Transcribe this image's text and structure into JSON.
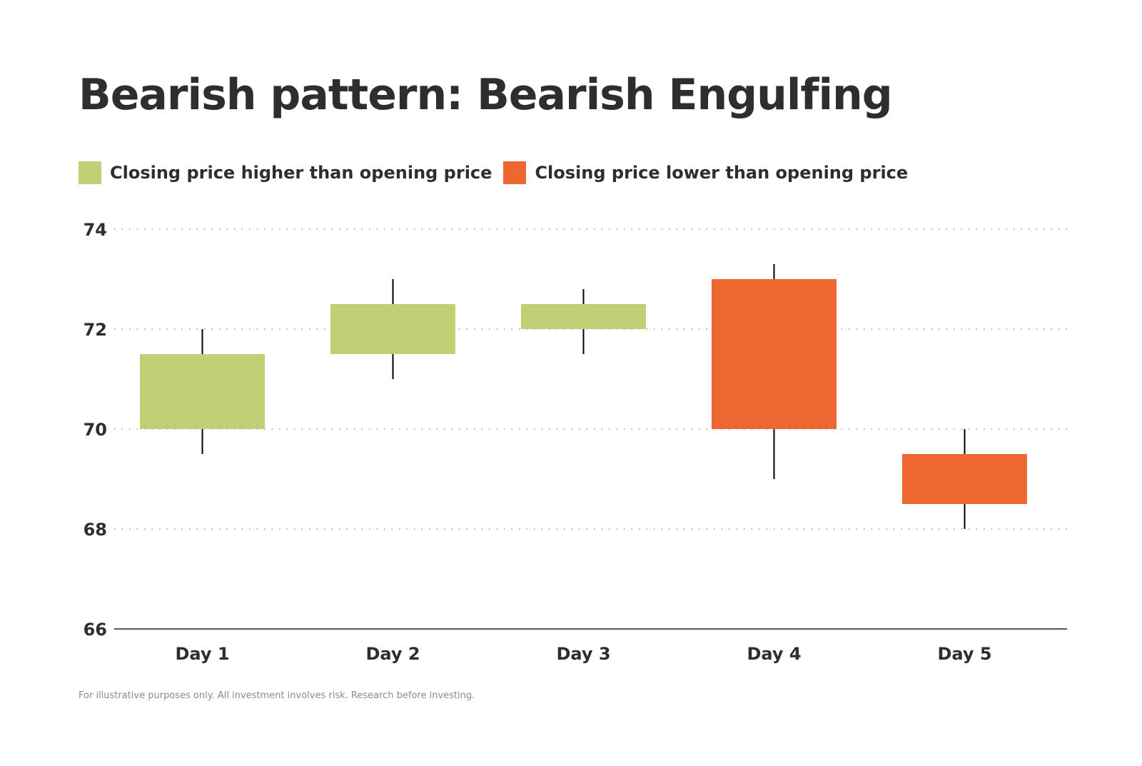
{
  "chart_data": {
    "type": "candlestick",
    "title": "Bearish pattern: Bearish Engulfing",
    "categories": [
      "Day 1",
      "Day 2",
      "Day 3",
      "Day 4",
      "Day 5"
    ],
    "open": [
      70,
      71.5,
      72,
      73,
      69.5
    ],
    "close": [
      71.5,
      72.5,
      72.5,
      70,
      68.5
    ],
    "high": [
      72,
      73,
      72.8,
      73.3,
      70
    ],
    "low": [
      69.5,
      71,
      71.5,
      69,
      68
    ],
    "ylim": [
      66,
      74
    ],
    "yticks": [
      66,
      68,
      70,
      72,
      74
    ],
    "grid": true,
    "legend_placement": "top-left",
    "legend": [
      {
        "label": "Closing price higher than opening price",
        "color": "#bfd075"
      },
      {
        "label": "Closing price lower than opening price",
        "color": "#ef6730"
      }
    ],
    "footnote": "For illustrative purposes only. All investment involves risk. Research before investing."
  }
}
